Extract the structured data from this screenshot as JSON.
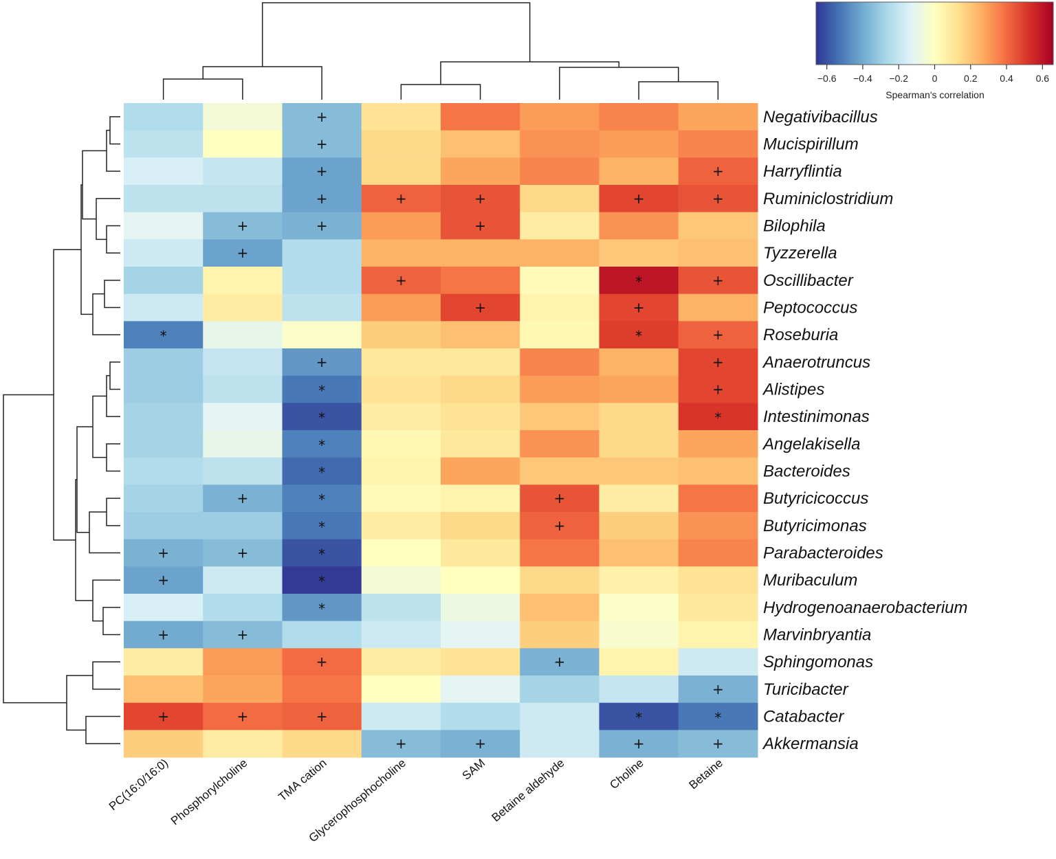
{
  "chart_data": {
    "type": "heatmap",
    "title": "",
    "columns": [
      "PC(16:0/16:0)",
      "Phosphorylcholine",
      "TMA cation",
      "Glycerophosphocholine",
      "SAM",
      "Betaine aldehyde",
      "Choline",
      "Betaine"
    ],
    "rows": [
      "Negativibacillus",
      "Mucispirillum",
      "Harryflintia",
      "Ruminiclostridium",
      "Bilophila",
      "Tyzzerella",
      "Oscillibacter",
      "Peptococcus",
      "Roseburia",
      "Anaerotruncus",
      "Alistipes",
      "Intestinimonas",
      "Angelakisella",
      "Bacteroides",
      "Butyricicoccus",
      "Butyricimonas",
      "Parabacteroides",
      "Muribaculum",
      "Hydrogenoanaerobacterium",
      "Marvinbryantia",
      "Sphingomonas",
      "Turicibacter",
      "Catabacter",
      "Akkermansia"
    ],
    "values": [
      [
        -0.25,
        -0.05,
        -0.35,
        0.12,
        0.38,
        0.3,
        0.35,
        0.28
      ],
      [
        -0.22,
        0.0,
        -0.35,
        0.15,
        0.22,
        0.32,
        0.3,
        0.35
      ],
      [
        -0.15,
        -0.2,
        -0.42,
        0.15,
        0.28,
        0.35,
        0.25,
        0.42
      ],
      [
        -0.22,
        -0.22,
        -0.42,
        0.42,
        0.45,
        0.15,
        0.48,
        0.45
      ],
      [
        -0.12,
        -0.35,
        -0.38,
        0.3,
        0.45,
        0.08,
        0.32,
        0.2
      ],
      [
        -0.18,
        -0.42,
        -0.25,
        0.25,
        0.25,
        0.25,
        0.2,
        0.22
      ],
      [
        -0.28,
        0.05,
        -0.25,
        0.42,
        0.38,
        0.02,
        0.6,
        0.45
      ],
      [
        -0.18,
        0.08,
        -0.22,
        0.3,
        0.48,
        0.05,
        0.48,
        0.25
      ],
      [
        -0.5,
        -0.1,
        -0.02,
        0.18,
        0.22,
        0.03,
        0.5,
        0.42
      ],
      [
        -0.3,
        -0.2,
        -0.45,
        0.1,
        0.1,
        0.35,
        0.25,
        0.48
      ],
      [
        -0.3,
        -0.22,
        -0.52,
        0.12,
        0.15,
        0.3,
        0.28,
        0.48
      ],
      [
        -0.28,
        -0.12,
        -0.6,
        0.08,
        0.12,
        0.2,
        0.15,
        0.52
      ],
      [
        -0.28,
        -0.1,
        -0.5,
        0.03,
        0.1,
        0.32,
        0.15,
        0.28
      ],
      [
        -0.25,
        -0.22,
        -0.55,
        0.05,
        0.28,
        0.2,
        0.2,
        0.22
      ],
      [
        -0.28,
        -0.38,
        -0.5,
        0.02,
        0.05,
        0.45,
        0.08,
        0.38
      ],
      [
        -0.3,
        -0.3,
        -0.52,
        0.08,
        0.15,
        0.42,
        0.18,
        0.32
      ],
      [
        -0.38,
        -0.35,
        -0.6,
        0.0,
        0.1,
        0.38,
        0.22,
        0.35
      ],
      [
        -0.42,
        -0.18,
        -0.65,
        -0.05,
        0.0,
        0.15,
        0.06,
        0.12
      ],
      [
        -0.15,
        -0.25,
        -0.45,
        -0.22,
        -0.08,
        0.22,
        -0.02,
        0.1
      ],
      [
        -0.4,
        -0.35,
        -0.25,
        -0.18,
        -0.12,
        0.18,
        -0.03,
        0.05
      ],
      [
        0.08,
        0.3,
        0.4,
        0.08,
        0.12,
        -0.38,
        0.05,
        -0.18
      ],
      [
        0.22,
        0.28,
        0.38,
        0.0,
        -0.12,
        -0.28,
        -0.2,
        -0.38
      ],
      [
        0.48,
        0.4,
        0.42,
        -0.18,
        -0.25,
        -0.18,
        -0.6,
        -0.52
      ],
      [
        0.18,
        0.08,
        0.15,
        -0.35,
        -0.38,
        -0.18,
        -0.38,
        -0.35
      ]
    ],
    "significance": [
      [
        "",
        "",
        "+",
        "",
        "",
        "",
        "",
        ""
      ],
      [
        "",
        "",
        "+",
        "",
        "",
        "",
        "",
        ""
      ],
      [
        "",
        "",
        "+",
        "",
        "",
        "",
        "",
        "+"
      ],
      [
        "",
        "",
        "+",
        "+",
        "+",
        "",
        "+",
        "+"
      ],
      [
        "",
        "+",
        "+",
        "",
        "+",
        "",
        "",
        ""
      ],
      [
        "",
        "+",
        "",
        "",
        "",
        "",
        "",
        ""
      ],
      [
        "",
        "",
        "",
        "+",
        "",
        "",
        "*",
        "+"
      ],
      [
        "",
        "",
        "",
        "",
        "+",
        "",
        "+",
        ""
      ],
      [
        "*",
        "",
        "",
        "",
        "",
        "",
        "*",
        "+"
      ],
      [
        "",
        "",
        "+",
        "",
        "",
        "",
        "",
        "+"
      ],
      [
        "",
        "",
        "*",
        "",
        "",
        "",
        "",
        "+"
      ],
      [
        "",
        "",
        "*",
        "",
        "",
        "",
        "",
        "*"
      ],
      [
        "",
        "",
        "*",
        "",
        "",
        "",
        "",
        ""
      ],
      [
        "",
        "",
        "*",
        "",
        "",
        "",
        "",
        ""
      ],
      [
        "",
        "+",
        "*",
        "",
        "",
        "+",
        "",
        ""
      ],
      [
        "",
        "",
        "*",
        "",
        "",
        "+",
        "",
        ""
      ],
      [
        "+",
        "+",
        "*",
        "",
        "",
        "",
        "",
        ""
      ],
      [
        "+",
        "",
        "*",
        "",
        "",
        "",
        "",
        ""
      ],
      [
        "",
        "",
        "*",
        "",
        "",
        "",
        "",
        ""
      ],
      [
        "+",
        "+",
        "",
        "",
        "",
        "",
        "",
        ""
      ],
      [
        "",
        "",
        "+",
        "",
        "",
        "+",
        "",
        ""
      ],
      [
        "",
        "",
        "",
        "",
        "",
        "",
        "",
        "+"
      ],
      [
        "+",
        "+",
        "+",
        "",
        "",
        "",
        "*",
        "*"
      ],
      [
        "",
        "",
        "",
        "+",
        "+",
        "",
        "+",
        "+"
      ]
    ],
    "colorbar": {
      "label": "Spearman's correlation",
      "ticks": [
        "−0.6",
        "−0.4",
        "−0.2",
        "0",
        "0.2",
        "0.4",
        "0.6"
      ],
      "range": [
        -0.66,
        0.66
      ],
      "colors": [
        "#313695",
        "#4575b4",
        "#74add1",
        "#abd9e9",
        "#e0f3f8",
        "#ffffbf",
        "#fee090",
        "#fdae61",
        "#f46d43",
        "#d73027",
        "#a50026"
      ]
    },
    "grid": false,
    "legend": "top-right"
  }
}
